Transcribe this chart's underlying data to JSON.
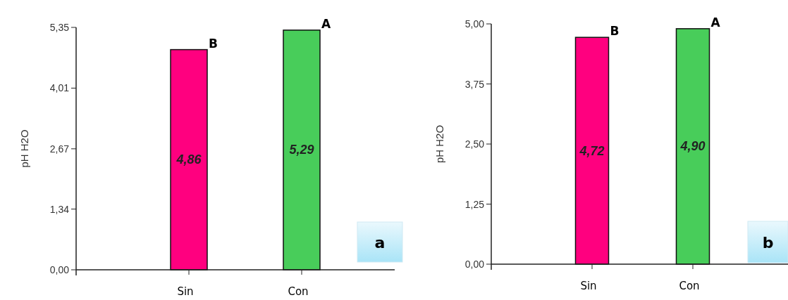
{
  "chart_data": [
    {
      "type": "bar",
      "title": "a",
      "ylabel": "pH H2O",
      "categories": [
        "Sin",
        "Con"
      ],
      "colors": [
        "#ff007f",
        "#48cd5a"
      ],
      "values": [
        4.86,
        5.29
      ],
      "value_labels": [
        "4,86",
        "5,29"
      ],
      "ylim": [
        0,
        5.35
      ],
      "yticks": [
        {
          "value": 0,
          "label": "0,00"
        },
        {
          "value": 1.34,
          "label": "1,34"
        },
        {
          "value": 2.67,
          "label": "2,67"
        },
        {
          "value": 4.01,
          "label": "4,01"
        },
        {
          "value": 5.35,
          "label": "5,35"
        }
      ],
      "annotations": [
        {
          "text": "B",
          "x": "Sin",
          "y": 4.86
        },
        {
          "text": "A",
          "x": "Con",
          "y": 5.29
        }
      ]
    },
    {
      "type": "bar",
      "title": "b",
      "ylabel": "pH H2O",
      "categories": [
        "Sin",
        "Con"
      ],
      "colors": [
        "#ff007f",
        "#48cd5a"
      ],
      "values": [
        4.72,
        4.9
      ],
      "value_labels": [
        "4,72",
        "4,90"
      ],
      "ylim": [
        0,
        5
      ],
      "yticks": [
        {
          "value": 0,
          "label": "0,00"
        },
        {
          "value": 1.25,
          "label": "1,25"
        },
        {
          "value": 2.5,
          "label": "2,50"
        },
        {
          "value": 3.75,
          "label": "3,75"
        },
        {
          "value": 5,
          "label": "5,00"
        }
      ],
      "annotations": [
        {
          "text": "B",
          "x": "Sin",
          "y": 4.72
        },
        {
          "text": "A",
          "x": "Con",
          "y": 4.9
        }
      ]
    }
  ]
}
